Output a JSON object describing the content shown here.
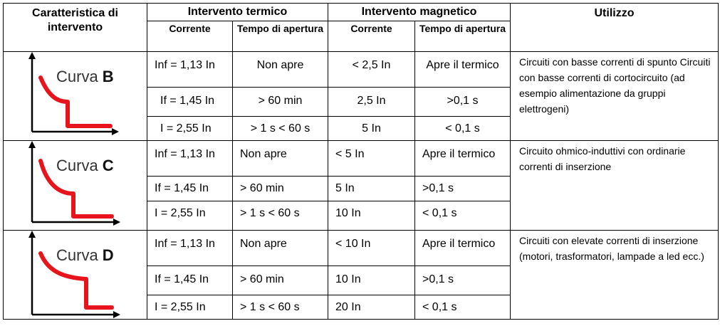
{
  "header": {
    "col1": "Caratteristica di intervento",
    "thermal": "Intervento termico",
    "magnetic": "Intervento magnetico",
    "use": "Utilizzo",
    "corrente": "Corrente",
    "tempo": "Tempo di apertura"
  },
  "curves": [
    {
      "label_prefix": "Curva ",
      "letter": "B",
      "rows": [
        {
          "t_current": "Inf = 1,13 In",
          "t_time": "Non apre",
          "m_current": "< 2,5 In",
          "m_time": "Apre il termico"
        },
        {
          "t_current": "If = 1,45 In",
          "t_time": "> 60 min",
          "m_current": "2,5 In",
          "m_time": ">0,1 s"
        },
        {
          "t_current": "I = 2,55 In",
          "t_time": "> 1 s < 60 s",
          "m_current": "5 In",
          "m_time": "< 0,1 s"
        }
      ],
      "use": "Circuiti con basse correnti di spunto Circuiti con basse correnti di cortocircuito (ad esempio alimentazione da gruppi elettrogeni)"
    },
    {
      "label_prefix": "Curva ",
      "letter": "C",
      "rows": [
        {
          "t_current": "Inf = 1,13 In",
          "t_time": "Non apre",
          "m_current": "< 5 In",
          "m_time": "Apre il termico"
        },
        {
          "t_current": "If = 1,45 In",
          "t_time": "> 60 min",
          "m_current": "5 In",
          "m_time": ">0,1 s"
        },
        {
          "t_current": "I = 2,55 In",
          "t_time": "> 1 s < 60 s",
          "m_current": "10 In",
          "m_time": "< 0,1 s"
        }
      ],
      "use": "Circuito ohmico-induttivi con ordinarie correnti di inserzione"
    },
    {
      "label_prefix": "Curva ",
      "letter": "D",
      "rows": [
        {
          "t_current": "Inf = 1,13 In",
          "t_time": "Non apre",
          "m_current": "< 10 In",
          "m_time": "Apre il termico"
        },
        {
          "t_current": "If = 1,45 In",
          "t_time": "> 60 min",
          "m_current": "10 In",
          "m_time": ">0,1 s"
        },
        {
          "t_current": "I = 2,55 In",
          "t_time": "> 1 s < 60 s",
          "m_current": "20 In",
          "m_time": "< 0,1 s"
        }
      ],
      "use": "Circuiti con elevate correnti di inserzione (motori, trasformatori, lampade a led ecc.)"
    }
  ],
  "colors": {
    "curve": "#e8141c",
    "axis": "#000000"
  }
}
